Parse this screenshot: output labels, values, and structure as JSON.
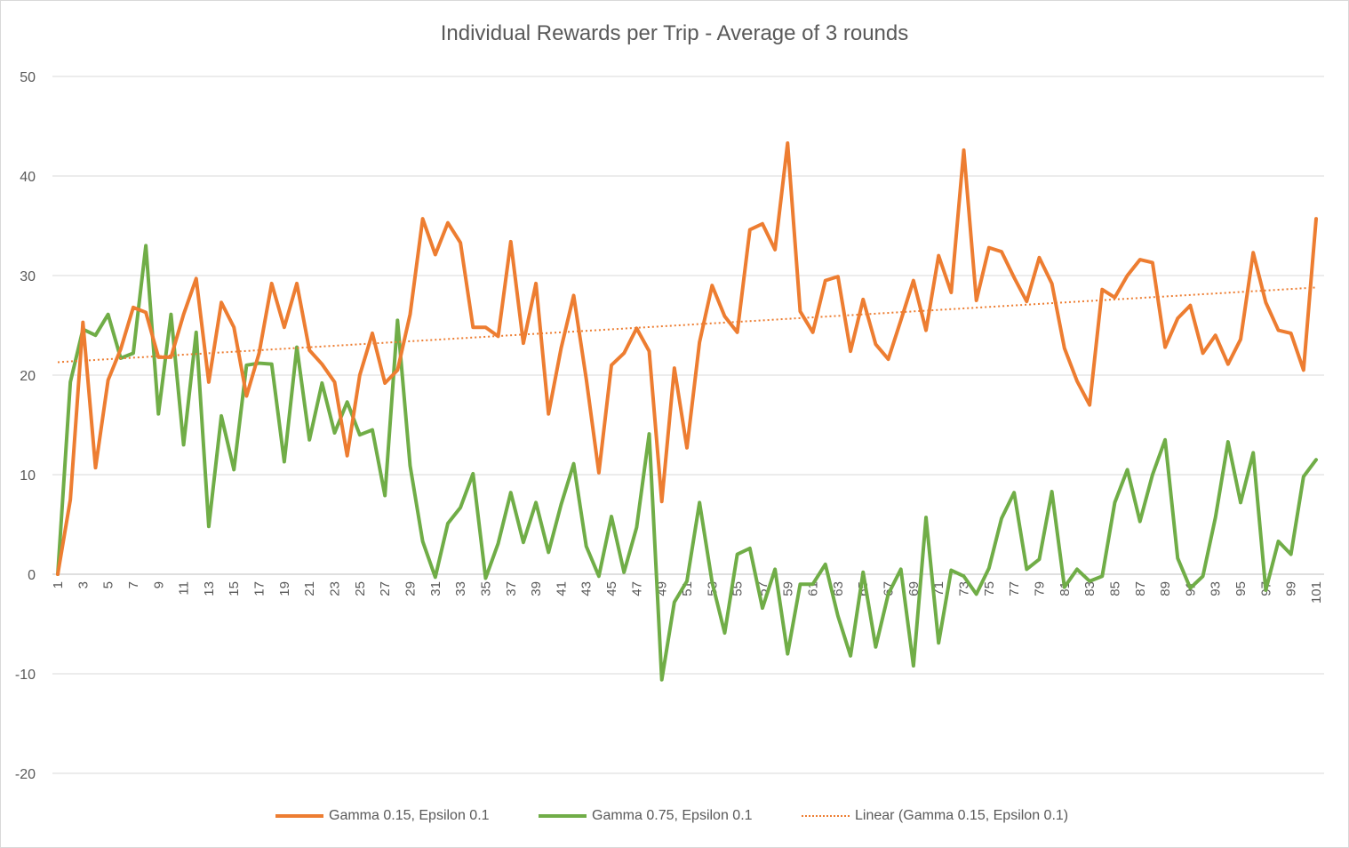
{
  "chart_data": {
    "type": "line",
    "title": "Individual Rewards per Trip - Average of 3 rounds",
    "ylim": [
      -20,
      50
    ],
    "yticks": [
      "-20",
      "-10",
      "0",
      "10",
      "20",
      "30",
      "40",
      "50"
    ],
    "xlim": [
      1,
      101
    ],
    "xtick_labels": [
      "1",
      "3",
      "5",
      "7",
      "9",
      "11",
      "13",
      "15",
      "17",
      "19",
      "21",
      "23",
      "25",
      "27",
      "29",
      "31",
      "33",
      "35",
      "37",
      "39",
      "41",
      "43",
      "45",
      "47",
      "49",
      "51",
      "53",
      "55",
      "57",
      "59",
      "61",
      "63",
      "65",
      "67",
      "69",
      "71",
      "73",
      "75",
      "77",
      "79",
      "81",
      "83",
      "85",
      "87",
      "89",
      "91",
      "93",
      "95",
      "97",
      "99",
      "101"
    ],
    "grid": "horizontal",
    "legend_position": "bottom",
    "series": [
      {
        "name": "Gamma 0.15, Epsilon 0.1",
        "color": "#ed7d31",
        "style": "solid",
        "values": [
          0.0,
          7.5,
          25.3,
          10.7,
          19.5,
          22.6,
          26.8,
          26.3,
          21.8,
          21.8,
          26.1,
          29.7,
          19.3,
          27.3,
          24.8,
          17.9,
          22.2,
          29.2,
          24.8,
          29.2,
          22.5,
          21.1,
          19.3,
          11.9,
          20.0,
          24.2,
          19.2,
          20.5,
          26.1,
          35.7,
          32.1,
          35.3,
          33.3,
          24.8,
          24.8,
          23.9,
          33.4,
          23.2,
          29.2,
          16.1,
          22.7,
          28.0,
          19.6,
          10.2,
          21.0,
          22.2,
          24.7,
          22.4,
          7.3,
          20.7,
          12.7,
          23.3,
          29.0,
          25.9,
          24.3,
          34.6,
          35.2,
          32.6,
          43.3,
          26.4,
          24.3,
          29.5,
          29.9,
          22.4,
          27.6,
          23.1,
          21.6,
          25.5,
          29.5,
          24.5,
          32.0,
          28.3,
          42.6,
          27.5,
          32.8,
          32.4,
          29.8,
          27.4,
          31.8,
          29.2,
          22.7,
          19.4,
          17.0,
          28.6,
          27.8,
          30.0,
          31.6,
          31.3,
          22.8,
          25.7,
          27.0,
          22.2,
          24.0,
          21.1,
          23.6,
          32.3,
          27.3,
          24.5,
          24.2,
          20.5,
          35.7
        ]
      },
      {
        "name": "Gamma 0.75, Epsilon 0.1",
        "color": "#70ad47",
        "style": "solid",
        "values": [
          0.0,
          19.3,
          24.6,
          24.0,
          26.1,
          21.7,
          22.2,
          33.0,
          16.1,
          26.1,
          13.0,
          24.3,
          4.8,
          15.9,
          10.5,
          21.0,
          21.2,
          21.1,
          11.3,
          22.8,
          13.5,
          19.2,
          14.2,
          17.3,
          14.0,
          14.5,
          7.9,
          25.5,
          10.9,
          3.3,
          -0.3,
          5.1,
          6.7,
          10.1,
          -0.4,
          3.1,
          8.2,
          3.2,
          7.2,
          2.2,
          7.0,
          11.1,
          2.8,
          -0.2,
          5.8,
          0.2,
          4.7,
          14.1,
          -10.6,
          -2.8,
          -0.7,
          7.2,
          -0.8,
          -5.9,
          2.0,
          2.6,
          -3.4,
          0.5,
          -8.0,
          -1.0,
          -1.0,
          1.0,
          -4.2,
          -8.2,
          0.2,
          -7.3,
          -2.0,
          0.5,
          -9.2,
          5.7,
          -6.9,
          0.4,
          -0.2,
          -2.0,
          0.6,
          5.6,
          8.2,
          0.5,
          1.5,
          8.3,
          -1.3,
          0.5,
          -0.7,
          -0.2,
          7.2,
          10.5,
          5.3,
          10.0,
          13.5,
          1.6,
          -1.4,
          -0.2,
          5.7,
          13.3,
          7.2,
          12.2,
          -1.6,
          3.3,
          2.0,
          9.8,
          11.5
        ]
      }
    ],
    "trendline": {
      "name": "Linear  (Gamma 0.15, Epsilon 0.1)",
      "color": "#ed7d31",
      "style": "dotted",
      "y_start": 21.3,
      "y_end": 28.8
    }
  }
}
